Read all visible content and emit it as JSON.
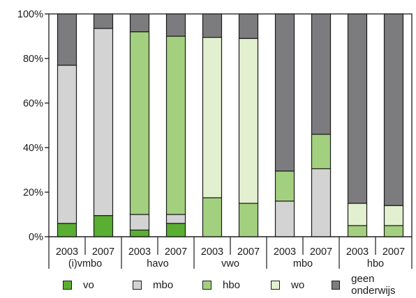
{
  "chart_data": {
    "type": "bar",
    "stacked": true,
    "title": "",
    "xlabel": "",
    "ylabel": "",
    "ylim": [
      0,
      100
    ],
    "yticks": [
      "0%",
      "20%",
      "40%",
      "60%",
      "80%",
      "100%"
    ],
    "grid": false,
    "legend_placement": "bottom",
    "groups": [
      {
        "label": "(i)vmbo",
        "years": [
          "2003",
          "2007"
        ]
      },
      {
        "label": "havo",
        "years": [
          "2003",
          "2007"
        ]
      },
      {
        "label": "vwo",
        "years": [
          "2003",
          "2007"
        ]
      },
      {
        "label": "mbo",
        "years": [
          "2003",
          "2007"
        ]
      },
      {
        "label": "hbo",
        "years": [
          "2003",
          "2007"
        ]
      }
    ],
    "categories": [
      "(i)vmbo 2003",
      "(i)vmbo 2007",
      "havo 2003",
      "havo 2007",
      "vwo 2003",
      "vwo 2007",
      "mbo 2003",
      "mbo 2007",
      "hbo 2003",
      "hbo 2007"
    ],
    "series": [
      {
        "name": "vo",
        "color": "#5aae32",
        "values": [
          6,
          9.5,
          3,
          6,
          0,
          0,
          0,
          0,
          0,
          0
        ]
      },
      {
        "name": "mbo",
        "color": "#d3d3d4",
        "values": [
          71,
          84,
          7,
          4,
          0,
          0,
          16,
          30.5,
          0,
          0
        ]
      },
      {
        "name": "hbo",
        "color": "#a3d07f",
        "values": [
          0,
          0,
          82,
          80,
          17.5,
          15,
          13.5,
          15.5,
          5,
          5
        ]
      },
      {
        "name": "wo",
        "color": "#e2f0cf",
        "values": [
          0,
          0,
          0,
          0,
          72,
          74,
          0,
          0,
          10,
          9
        ]
      },
      {
        "name": "geen onderwijs",
        "color": "#7c7c7e",
        "values": [
          23,
          6.5,
          8,
          10,
          10.5,
          11,
          70.5,
          54,
          85,
          86
        ]
      }
    ]
  }
}
